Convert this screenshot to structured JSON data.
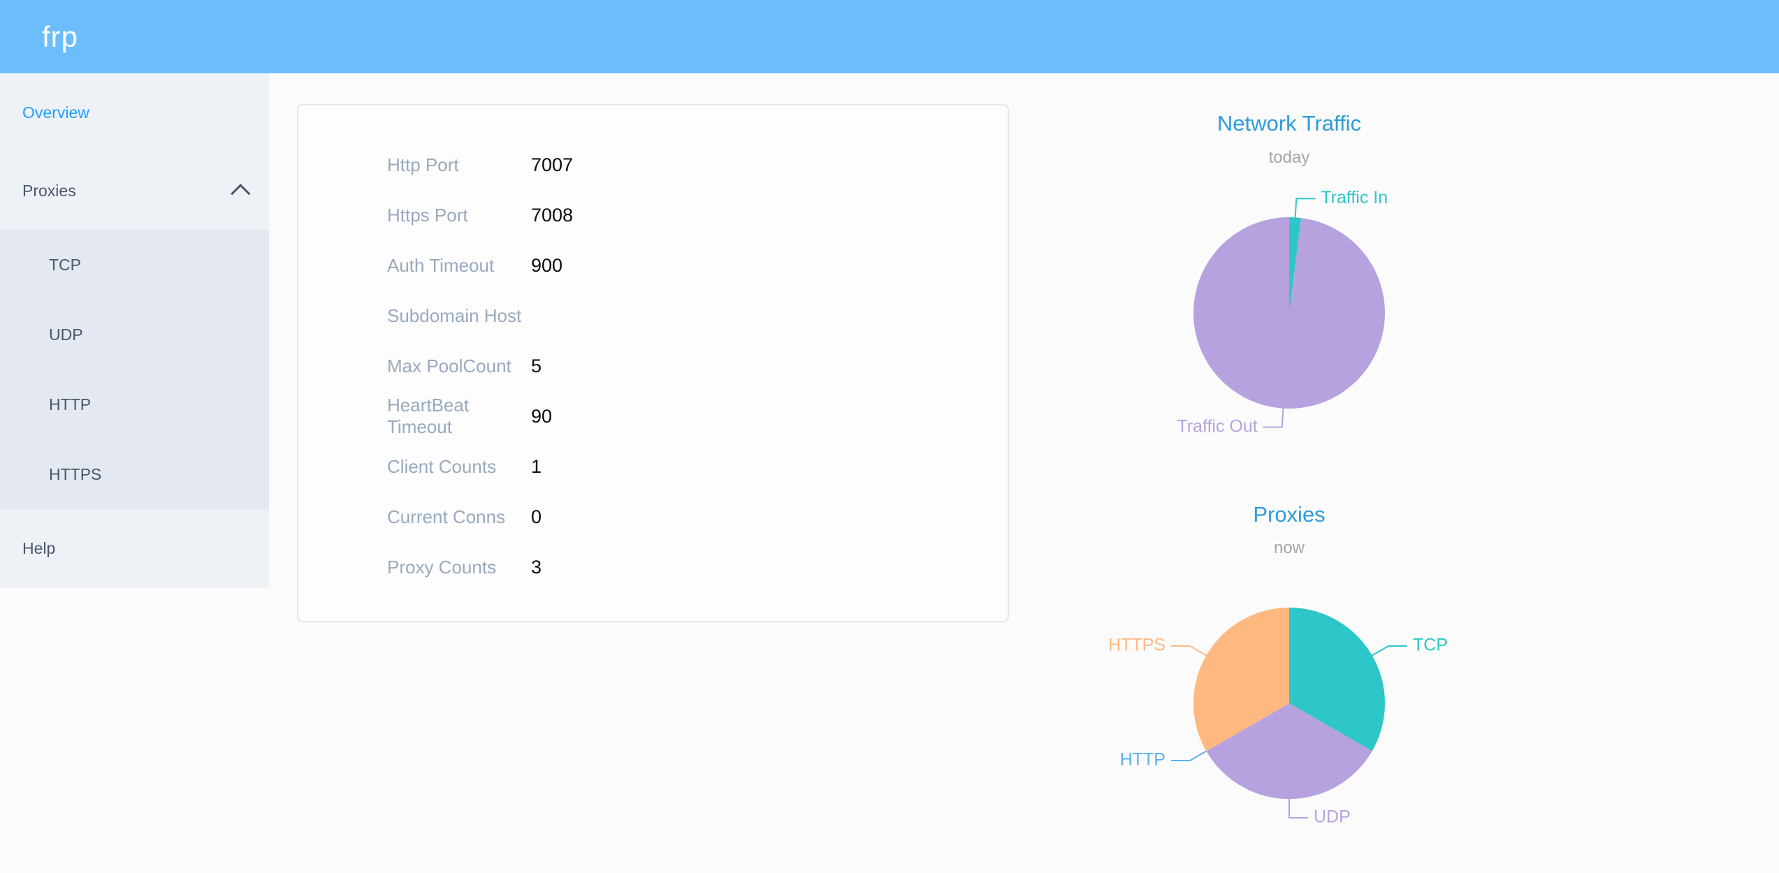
{
  "header": {
    "logo": "frp"
  },
  "sidebar": {
    "items": [
      {
        "label": "Overview",
        "active": true
      },
      {
        "label": "Proxies",
        "expanded": true,
        "children": [
          {
            "label": "TCP"
          },
          {
            "label": "UDP"
          },
          {
            "label": "HTTP"
          },
          {
            "label": "HTTPS"
          }
        ]
      },
      {
        "label": "Help"
      }
    ]
  },
  "overview_card": {
    "rows": [
      {
        "label": "Http Port",
        "value": "7007"
      },
      {
        "label": "Https Port",
        "value": "7008"
      },
      {
        "label": "Auth Timeout",
        "value": "900"
      },
      {
        "label": "Subdomain Host",
        "value": ""
      },
      {
        "label": "Max PoolCount",
        "value": "5"
      },
      {
        "label": "HeartBeat Timeout",
        "value": "90"
      },
      {
        "label": "Client Counts",
        "value": "1"
      },
      {
        "label": "Current Conns",
        "value": "0"
      },
      {
        "label": "Proxy Counts",
        "value": "3"
      }
    ]
  },
  "chart_data": [
    {
      "type": "pie",
      "title": "Network Traffic",
      "subtitle": "today",
      "legend_position": "outside-callout",
      "series": [
        {
          "name": "Traffic In",
          "value": 2,
          "color": "#2ec7c9"
        },
        {
          "name": "Traffic Out",
          "value": 98,
          "color": "#b6a2de"
        }
      ]
    },
    {
      "type": "pie",
      "title": "Proxies",
      "subtitle": "now",
      "legend_position": "outside-callout",
      "series": [
        {
          "name": "TCP",
          "value": 1,
          "color": "#2ec7c9"
        },
        {
          "name": "UDP",
          "value": 1,
          "color": "#b6a2de"
        },
        {
          "name": "HTTP",
          "value": 0,
          "color": "#5ab1ef"
        },
        {
          "name": "HTTPS",
          "value": 1,
          "color": "#ffb980"
        }
      ]
    }
  ],
  "colors": {
    "header_bg": "#6cbdfc",
    "sidebar_bg": "#eef1f6",
    "submenu_bg": "#e4e8f1",
    "menu_text": "#48576a",
    "menu_active": "#20a0ff",
    "chart_title": "#2d9cdb",
    "card_label": "#99a9bf"
  }
}
